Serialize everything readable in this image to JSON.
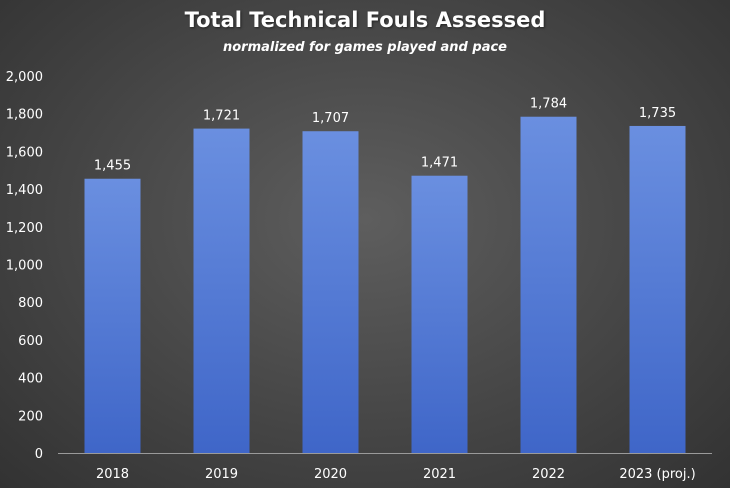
{
  "chart_data": {
    "type": "bar",
    "title": "Total Technical Fouls Assessed",
    "subtitle": "normalized for games played and pace",
    "xlabel": "",
    "ylabel": "",
    "categories": [
      "2018",
      "2019",
      "2020",
      "2021",
      "2022",
      "2023 (proj.)"
    ],
    "values": [
      1455,
      1721,
      1707,
      1471,
      1784,
      1735
    ],
    "value_labels": [
      "1,455",
      "1,721",
      "1,707",
      "1,471",
      "1,784",
      "1,735"
    ],
    "ylim": [
      0,
      2000
    ],
    "yticks": [
      0,
      200,
      400,
      600,
      800,
      1000,
      1200,
      1400,
      1600,
      1800,
      2000
    ],
    "ytick_labels": [
      "0",
      "200",
      "400",
      "600",
      "800",
      "1,000",
      "1,200",
      "1,400",
      "1,600",
      "1,800",
      "2,000"
    ],
    "grid": false,
    "legend": "none",
    "colors": {
      "bar_top": "#6a8fe0",
      "bar_bottom": "#3f66c8",
      "axis": "#9a9a9a",
      "text": "#ffffff"
    }
  }
}
